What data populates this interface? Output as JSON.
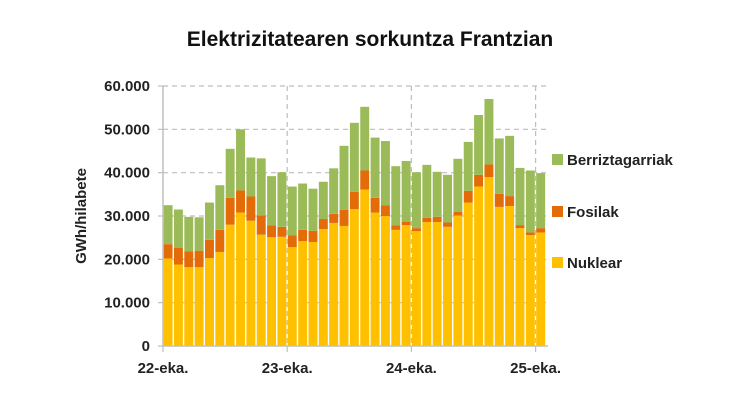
{
  "chart_data": {
    "type": "bar",
    "stacked": true,
    "title": "Elektrizitatearen sorkuntza Frantzian",
    "xlabel": "",
    "ylabel": "GWh/hilabete",
    "ylim": [
      0,
      60000
    ],
    "yticks": [
      0,
      10000,
      20000,
      30000,
      40000,
      50000,
      60000
    ],
    "ytick_labels": [
      "0",
      "10.000",
      "20.000",
      "30.000",
      "40.000",
      "50.000",
      "60.000"
    ],
    "xtick_labels": [
      "22-eka.",
      "23-eka.",
      "24-eka.",
      "25-eka."
    ],
    "xtick_index": [
      0,
      12,
      24,
      36
    ],
    "grid": true,
    "legend_position": "right",
    "series": [
      {
        "name": "Nuklear",
        "color": "#FFC000",
        "values": [
          20200,
          18800,
          18200,
          18200,
          20300,
          21700,
          28000,
          30800,
          28900,
          25700,
          25100,
          25200,
          22800,
          24200,
          24000,
          27000,
          28400,
          27700,
          31600,
          36100,
          30800,
          30000,
          26800,
          27900,
          26500,
          28600,
          28600,
          27500,
          30100,
          33100,
          36800,
          39000,
          32100,
          32300,
          27200,
          25600,
          26200
        ]
      },
      {
        "name": "Fosilak",
        "color": "#E36C09",
        "values": [
          3300,
          3900,
          3600,
          3800,
          4200,
          5100,
          6200,
          5100,
          5600,
          4400,
          2700,
          2300,
          2700,
          2600,
          2600,
          2300,
          2100,
          3700,
          4000,
          4400,
          3400,
          2500,
          1000,
          800,
          700,
          1000,
          1200,
          1000,
          900,
          2700,
          2700,
          2900,
          3000,
          2300,
          700,
          600,
          1000
        ]
      },
      {
        "name": "Berriztagarriak",
        "color": "#9BBB59",
        "values": [
          9000,
          8800,
          8000,
          7700,
          8600,
          10300,
          11300,
          14100,
          9000,
          13200,
          11400,
          12600,
          11300,
          10700,
          9700,
          8600,
          10500,
          14800,
          15900,
          14700,
          13900,
          14800,
          13700,
          14000,
          12900,
          12200,
          10400,
          11000,
          12200,
          11300,
          13800,
          15100,
          12800,
          13900,
          13200,
          14300,
          12700
        ]
      }
    ]
  }
}
